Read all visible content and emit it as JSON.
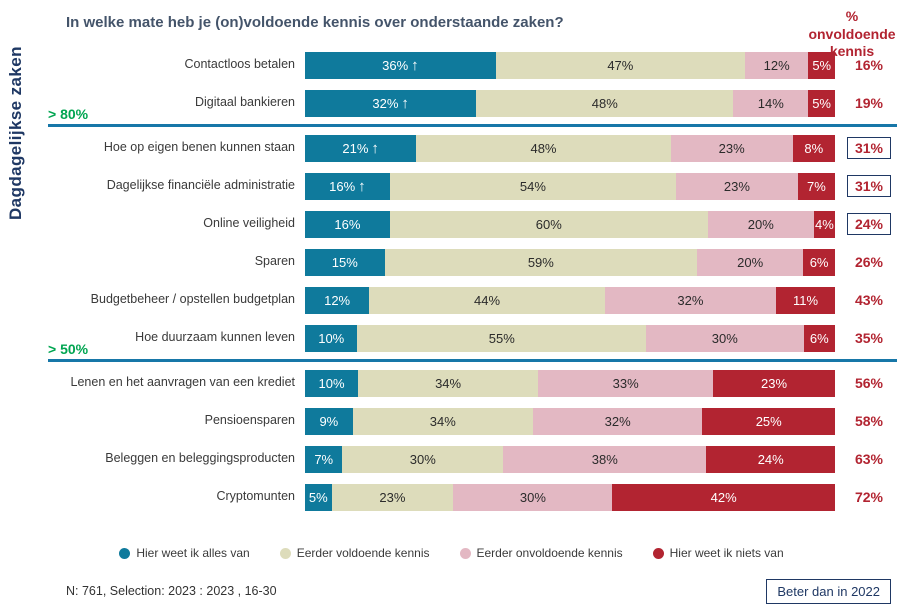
{
  "title": "In welke mate heb je (on)voldoende kennis over onderstaande zaken?",
  "right_header": "% onvoldoende kennis",
  "y_axis_label": "Dagdagelijkse zaken",
  "group_markers": [
    {
      "label": "> 80%",
      "before_row_index": 2
    },
    {
      "label": "> 50%",
      "before_row_index": 8
    }
  ],
  "chart_data": {
    "type": "bar",
    "orientation": "horizontal",
    "stacked": true,
    "title": "In welke mate heb je (on)voldoende kennis over onderstaande zaken?",
    "x_range": [
      0,
      100
    ],
    "legend_position": "bottom",
    "categories": [
      "Contactloos betalen",
      "Digitaal bankieren",
      "Hoe op eigen benen kunnen staan",
      "Dagelijkse financiële administratie",
      "Online veiligheid",
      "Sparen",
      "Budgetbeheer / opstellen budgetplan",
      "Hoe duurzaam kunnen leven",
      "Lenen en het aanvragen van een krediet",
      "Pensioensparen",
      "Beleggen en beleggingsproducten",
      "Cryptomunten"
    ],
    "series": [
      {
        "name": "Hier weet ik alles van",
        "color": "#0f7a9c",
        "text_color": "#ffffff",
        "values": [
          36,
          32,
          21,
          16,
          16,
          15,
          12,
          10,
          10,
          9,
          7,
          5
        ]
      },
      {
        "name": "Eerder voldoende kennis",
        "color": "#dddcbb",
        "text_color": "#2b2b2b",
        "values": [
          47,
          48,
          48,
          54,
          60,
          59,
          44,
          55,
          34,
          34,
          30,
          23
        ]
      },
      {
        "name": "Eerder onvoldoende kennis",
        "color": "#e3b8c3",
        "text_color": "#2b2b2b",
        "values": [
          12,
          14,
          23,
          23,
          20,
          20,
          32,
          30,
          33,
          32,
          38,
          30
        ]
      },
      {
        "name": "Hier weet ik niets van",
        "color": "#b22431",
        "text_color": "#ffffff",
        "values": [
          5,
          5,
          8,
          7,
          4,
          6,
          11,
          6,
          23,
          25,
          24,
          42
        ]
      }
    ],
    "arrow_rows": [
      0,
      1,
      2,
      3
    ],
    "insufficient_pct": [
      16,
      19,
      31,
      31,
      24,
      26,
      43,
      35,
      56,
      58,
      63,
      72
    ],
    "boxed_rows": [
      2,
      3,
      4
    ],
    "right_column_header": "% onvoldoende kennis"
  },
  "legend": [
    {
      "label": "Hier weet ik alles van",
      "color": "#0f7a9c"
    },
    {
      "label": "Eerder voldoende kennis",
      "color": "#dddcbb"
    },
    {
      "label": "Eerder onvoldoende kennis",
      "color": "#e3b8c3"
    },
    {
      "label": "Hier weet ik niets van",
      "color": "#b22431"
    }
  ],
  "footer": {
    "note": "N: 761, Selection: 2023 : 2023 , 16-30",
    "badge": "Beter dan in 2022"
  },
  "colors": {
    "accent_red": "#b22431",
    "accent_green": "#00a551",
    "navy": "#1f3864",
    "divider": "#1777a8",
    "title_text": "#44546a"
  }
}
